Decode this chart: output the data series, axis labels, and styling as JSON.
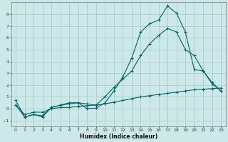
{
  "xlabel": "Humidex (Indice chaleur)",
  "ylabel": "",
  "bg_color": "#cce8e8",
  "grid_color": "#aacccc",
  "line_color": "#006666",
  "xlim": [
    -0.5,
    23.5
  ],
  "ylim": [
    -1.5,
    9.0
  ],
  "yticks": [
    -1,
    0,
    1,
    2,
    3,
    4,
    5,
    6,
    7,
    8
  ],
  "xticks": [
    0,
    1,
    2,
    3,
    4,
    5,
    6,
    7,
    8,
    9,
    10,
    11,
    12,
    13,
    14,
    15,
    16,
    17,
    18,
    19,
    20,
    21,
    22,
    23
  ],
  "line1_x": [
    0,
    1,
    2,
    3,
    4,
    5,
    6,
    7,
    8,
    9,
    10,
    11,
    12,
    13,
    14,
    15,
    16,
    17,
    18,
    19,
    20,
    21,
    22,
    23
  ],
  "line1_y": [
    0.7,
    -0.7,
    -0.5,
    -0.7,
    0.1,
    0.3,
    0.5,
    0.5,
    0.0,
    0.05,
    0.5,
    1.5,
    2.7,
    4.3,
    6.5,
    7.2,
    7.5,
    8.7,
    8.1,
    6.5,
    3.3,
    3.2,
    2.1,
    1.5
  ],
  "line2_x": [
    0,
    1,
    2,
    3,
    4,
    5,
    6,
    7,
    8,
    9,
    10,
    11,
    12,
    13,
    14,
    15,
    16,
    17,
    18,
    19,
    20,
    21,
    22,
    23
  ],
  "line2_y": [
    0.3,
    -0.7,
    -0.5,
    -0.6,
    0.1,
    0.3,
    0.4,
    0.5,
    0.4,
    0.3,
    1.0,
    1.8,
    2.5,
    3.2,
    4.5,
    5.5,
    6.2,
    6.8,
    6.5,
    5.0,
    4.5,
    3.2,
    2.2,
    1.5
  ],
  "line3_x": [
    0,
    1,
    2,
    3,
    4,
    5,
    6,
    7,
    8,
    9,
    10,
    11,
    12,
    13,
    14,
    15,
    16,
    17,
    18,
    19,
    20,
    21,
    22,
    23
  ],
  "line3_y": [
    0.3,
    -0.5,
    -0.3,
    -0.3,
    0.0,
    0.1,
    0.1,
    0.2,
    0.25,
    0.3,
    0.4,
    0.55,
    0.7,
    0.85,
    1.0,
    1.1,
    1.2,
    1.3,
    1.4,
    1.5,
    1.6,
    1.65,
    1.7,
    1.75
  ]
}
